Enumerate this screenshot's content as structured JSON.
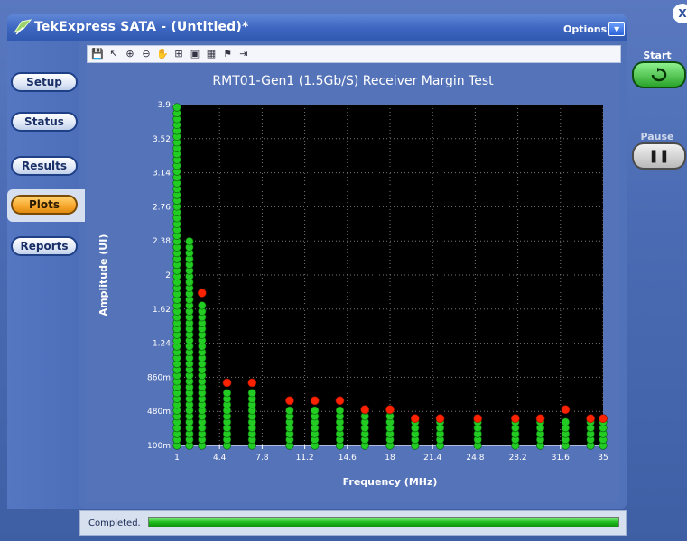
{
  "app": {
    "title": "TekExpress SATA - (Untitled)*",
    "options_label": "Options",
    "close_label": "X"
  },
  "nav": {
    "items": [
      {
        "label": "Setup",
        "active": false
      },
      {
        "label": "Status",
        "active": false
      },
      {
        "label": "Results",
        "active": false
      },
      {
        "label": "Plots",
        "active": true
      },
      {
        "label": "Reports",
        "active": false
      }
    ]
  },
  "toolbar": {
    "icons": [
      "save-icon",
      "pointer-icon",
      "zoom-in-icon",
      "zoom-out-icon",
      "pan-hand-icon",
      "crosshair-icon",
      "select-box-icon",
      "table-icon",
      "marker-icon",
      "export-arrow-icon"
    ]
  },
  "controls": {
    "start_label": "Start",
    "pause_label": "Pause"
  },
  "status": {
    "text": "Completed.",
    "progress": 1.0
  },
  "chart_data": {
    "type": "scatter",
    "title": "RMT01-Gen1 (1.5Gb/S) Receiver Margin Test",
    "xlabel": "Frequency (MHz)",
    "ylabel": "Amplitude (UI)",
    "x_ticks": [
      "1",
      "4.4",
      "7.8",
      "11.2",
      "14.6",
      "18",
      "21.4",
      "24.8",
      "28.2",
      "31.6",
      "35"
    ],
    "y_ticks": [
      "100m",
      "480m",
      "860m",
      "1.24",
      "1.62",
      "2",
      "2.38",
      "2.76",
      "3.14",
      "3.52",
      "3.9"
    ],
    "xlim": [
      1,
      35
    ],
    "ylim": [
      0.1,
      3.9
    ],
    "grid": true,
    "pass_color": "#22cc22",
    "fail_color": "#ff2200",
    "columns": [
      {
        "x": 1.0,
        "max_pass": 3.9,
        "fail": null
      },
      {
        "x": 2.0,
        "max_pass": 2.38,
        "fail": null
      },
      {
        "x": 3.0,
        "max_pass": 1.7,
        "fail": 1.8
      },
      {
        "x": 5.0,
        "max_pass": 0.7,
        "fail": 0.8
      },
      {
        "x": 7.0,
        "max_pass": 0.7,
        "fail": 0.8
      },
      {
        "x": 10.0,
        "max_pass": 0.5,
        "fail": 0.6
      },
      {
        "x": 12.0,
        "max_pass": 0.5,
        "fail": 0.6
      },
      {
        "x": 14.0,
        "max_pass": 0.5,
        "fail": 0.6
      },
      {
        "x": 16.0,
        "max_pass": 0.5,
        "fail": 0.5
      },
      {
        "x": 18.0,
        "max_pass": 0.5,
        "fail": 0.5
      },
      {
        "x": 20.0,
        "max_pass": 0.4,
        "fail": 0.4
      },
      {
        "x": 22.0,
        "max_pass": 0.4,
        "fail": 0.4
      },
      {
        "x": 25.0,
        "max_pass": 0.4,
        "fail": 0.4
      },
      {
        "x": 28.0,
        "max_pass": 0.4,
        "fail": 0.4
      },
      {
        "x": 30.0,
        "max_pass": 0.4,
        "fail": 0.4
      },
      {
        "x": 32.0,
        "max_pass": 0.4,
        "fail": 0.5
      },
      {
        "x": 34.0,
        "max_pass": 0.4,
        "fail": 0.4
      },
      {
        "x": 35.0,
        "max_pass": 0.4,
        "fail": 0.4
      }
    ]
  }
}
